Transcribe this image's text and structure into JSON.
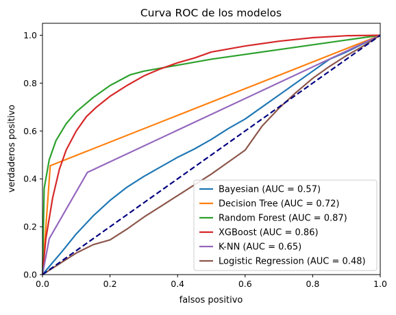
{
  "chart_data": {
    "type": "line",
    "title": "Curva ROC de los modelos",
    "xlabel": "falsos positivo",
    "ylabel": "verdaderos positivo",
    "xlim": [
      0,
      1
    ],
    "ylim": [
      0,
      1.05
    ],
    "xticks": [
      "0.0",
      "0.2",
      "0.4",
      "0.6",
      "0.8",
      "1.0"
    ],
    "yticks": [
      "0.0",
      "0.2",
      "0.4",
      "0.6",
      "0.8",
      "1.0"
    ],
    "grid": false,
    "legend_position": "lower-right",
    "diagonal": {
      "color": "#000080",
      "dashed": true,
      "points": [
        [
          0,
          0
        ],
        [
          1,
          1
        ]
      ]
    },
    "series": [
      {
        "name": "Bayesian (AUC = 0.57)",
        "color": "#1f77b4",
        "points": [
          [
            0,
            0
          ],
          [
            0.03,
            0.05
          ],
          [
            0.06,
            0.1
          ],
          [
            0.1,
            0.17
          ],
          [
            0.15,
            0.245
          ],
          [
            0.2,
            0.31
          ],
          [
            0.25,
            0.365
          ],
          [
            0.3,
            0.41
          ],
          [
            0.35,
            0.45
          ],
          [
            0.4,
            0.49
          ],
          [
            0.45,
            0.525
          ],
          [
            0.5,
            0.565
          ],
          [
            0.55,
            0.61
          ],
          [
            0.6,
            0.65
          ],
          [
            0.65,
            0.7
          ],
          [
            0.7,
            0.75
          ],
          [
            0.75,
            0.8
          ],
          [
            0.8,
            0.85
          ],
          [
            0.85,
            0.9
          ],
          [
            0.9,
            0.93
          ],
          [
            0.95,
            0.965
          ],
          [
            1,
            1
          ]
        ]
      },
      {
        "name": "Decision Tree (AUC = 0.72)",
        "color": "#ff7f0e",
        "points": [
          [
            0,
            0
          ],
          [
            0.023,
            0.455
          ],
          [
            1,
            1
          ]
        ]
      },
      {
        "name": "Random Forest (AUC = 0.87)",
        "color": "#2ca02c",
        "points": [
          [
            0,
            0
          ],
          [
            0.005,
            0.36
          ],
          [
            0.02,
            0.48
          ],
          [
            0.04,
            0.56
          ],
          [
            0.07,
            0.63
          ],
          [
            0.1,
            0.68
          ],
          [
            0.15,
            0.74
          ],
          [
            0.2,
            0.79
          ],
          [
            0.26,
            0.835
          ],
          [
            0.3,
            0.85
          ],
          [
            0.4,
            0.875
          ],
          [
            0.5,
            0.9
          ],
          [
            0.6,
            0.92
          ],
          [
            0.7,
            0.94
          ],
          [
            0.8,
            0.96
          ],
          [
            0.9,
            0.98
          ],
          [
            1,
            1
          ]
        ]
      },
      {
        "name": "XGBoost (AUC = 0.86)",
        "color": "#d62728",
        "points": [
          [
            0,
            0
          ],
          [
            0.01,
            0.15
          ],
          [
            0.03,
            0.32
          ],
          [
            0.05,
            0.44
          ],
          [
            0.07,
            0.52
          ],
          [
            0.1,
            0.6
          ],
          [
            0.13,
            0.66
          ],
          [
            0.16,
            0.7
          ],
          [
            0.2,
            0.745
          ],
          [
            0.25,
            0.79
          ],
          [
            0.3,
            0.83
          ],
          [
            0.35,
            0.86
          ],
          [
            0.4,
            0.885
          ],
          [
            0.45,
            0.905
          ],
          [
            0.5,
            0.93
          ],
          [
            0.6,
            0.955
          ],
          [
            0.7,
            0.975
          ],
          [
            0.8,
            0.99
          ],
          [
            0.9,
            0.998
          ],
          [
            1,
            1
          ]
        ]
      },
      {
        "name": "K-NN (AUC = 0.65)",
        "color": "#9467bd",
        "points": [
          [
            0,
            0
          ],
          [
            0.02,
            0.15
          ],
          [
            0.133,
            0.427
          ],
          [
            1,
            1
          ]
        ]
      },
      {
        "name": "Logistic Regression (AUC = 0.48)",
        "color": "#8c564b",
        "points": [
          [
            0,
            0
          ],
          [
            0.05,
            0.045
          ],
          [
            0.1,
            0.09
          ],
          [
            0.15,
            0.125
          ],
          [
            0.2,
            0.145
          ],
          [
            0.25,
            0.19
          ],
          [
            0.3,
            0.24
          ],
          [
            0.35,
            0.285
          ],
          [
            0.4,
            0.33
          ],
          [
            0.45,
            0.375
          ],
          [
            0.5,
            0.42
          ],
          [
            0.55,
            0.47
          ],
          [
            0.6,
            0.52
          ],
          [
            0.65,
            0.62
          ],
          [
            0.7,
            0.695
          ],
          [
            0.75,
            0.76
          ],
          [
            0.8,
            0.82
          ],
          [
            0.85,
            0.87
          ],
          [
            0.9,
            0.915
          ],
          [
            0.95,
            0.955
          ],
          [
            1,
            1
          ]
        ]
      }
    ]
  }
}
